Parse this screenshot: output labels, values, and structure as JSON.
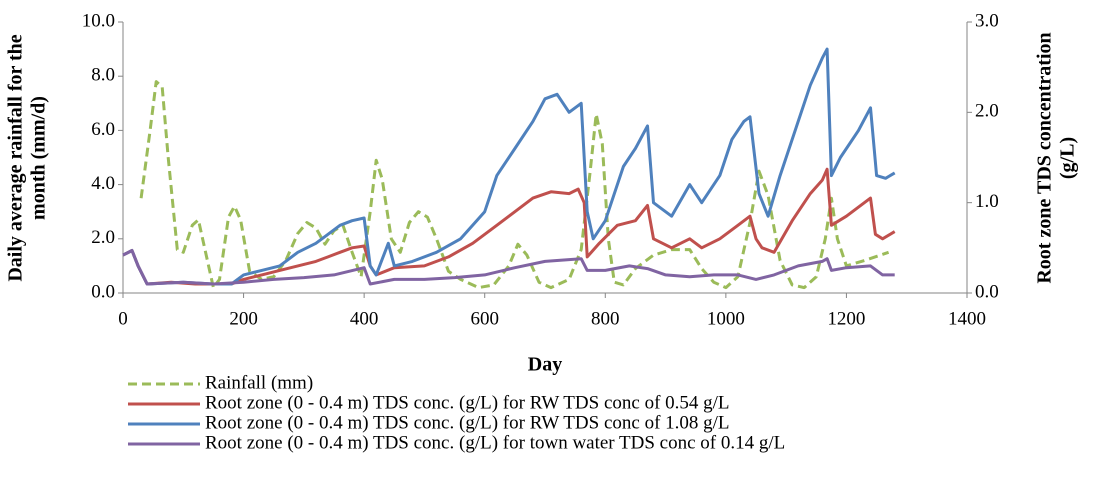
{
  "chart_data": {
    "type": "line",
    "xlabel": "Day",
    "ylabel": [
      "Daily average rainfall for the",
      "month (mm/d)"
    ],
    "y2label": [
      "Root zone TDS concentration",
      "(g/L)"
    ],
    "xlim": [
      0,
      1400
    ],
    "xticks": [
      0,
      200,
      400,
      600,
      800,
      1000,
      1200,
      1400
    ],
    "ylim": [
      0,
      10
    ],
    "yticks": [
      {
        "value": 0,
        "label": "0.0"
      },
      {
        "value": 2,
        "label": "2.0"
      },
      {
        "value": 4,
        "label": "4.0"
      },
      {
        "value": 6,
        "label": "6.0"
      },
      {
        "value": 8,
        "label": "8.0"
      },
      {
        "value": 10,
        "label": "10.0"
      }
    ],
    "y2lim": [
      0,
      3
    ],
    "y2ticks": [
      {
        "value": 0,
        "label": "0.0"
      },
      {
        "value": 1,
        "label": "1.0"
      },
      {
        "value": 2,
        "label": "2.0"
      },
      {
        "value": 3,
        "label": "3.0"
      }
    ],
    "series": [
      {
        "name": "Rainfall (mm)",
        "color": "#9bbb59",
        "dashed": true,
        "x": [
          30,
          45,
          55,
          65,
          75,
          90,
          100,
          115,
          125,
          140,
          150,
          160,
          175,
          185,
          195,
          210,
          230,
          250,
          270,
          290,
          305,
          320,
          335,
          350,
          365,
          380,
          395,
          410,
          420,
          430,
          445,
          460,
          475,
          490,
          505,
          520,
          540,
          560,
          590,
          615,
          640,
          655,
          670,
          690,
          710,
          740,
          760,
          775,
          785,
          795,
          805,
          815,
          830,
          850,
          880,
          910,
          940,
          960,
          980,
          1000,
          1020,
          1040,
          1055,
          1070,
          1090,
          1110,
          1130,
          1150,
          1165,
          1175,
          1185,
          1200,
          1230,
          1270
        ],
        "values": [
          3.5,
          6,
          7.8,
          7.6,
          5,
          1.6,
          1.5,
          2.5,
          2.7,
          1.2,
          0.2,
          0.5,
          2.8,
          3.2,
          2.7,
          0.8,
          0.5,
          0.6,
          1.2,
          2.2,
          2.6,
          2.4,
          1.8,
          2.3,
          2.5,
          1.5,
          0.6,
          3,
          4.9,
          4.2,
          2,
          1.5,
          2.6,
          3,
          2.8,
          2,
          0.8,
          0.5,
          0.2,
          0.3,
          1,
          1.8,
          1.4,
          0.4,
          0.2,
          0.5,
          1.6,
          4.5,
          6.6,
          5.5,
          2,
          0.4,
          0.3,
          0.9,
          1.4,
          1.6,
          1.6,
          0.9,
          0.4,
          0.2,
          0.6,
          2.6,
          4.5,
          3.6,
          1.2,
          0.3,
          0.2,
          0.6,
          2,
          3.5,
          2,
          1,
          1.2,
          1.5
        ]
      },
      {
        "name": "Root zone (0 - 0.4 m) TDS conc. (g/L) for RW TDS conc of 0.54 g/L",
        "color": "#c0504d",
        "axis": "y2",
        "x": [
          0,
          15,
          25,
          40,
          80,
          120,
          150,
          180,
          200,
          230,
          260,
          290,
          320,
          340,
          360,
          380,
          400,
          410,
          420,
          450,
          500,
          540,
          580,
          620,
          650,
          680,
          710,
          740,
          755,
          765,
          770,
          790,
          820,
          850,
          870,
          880,
          910,
          940,
          960,
          990,
          1020,
          1040,
          1050,
          1060,
          1080,
          1110,
          1140,
          1160,
          1168,
          1175,
          1200,
          1240,
          1248,
          1260,
          1280
        ],
        "values": [
          0.42,
          0.47,
          0.3,
          0.1,
          0.12,
          0.1,
          0.1,
          0.1,
          0.15,
          0.2,
          0.25,
          0.3,
          0.35,
          0.4,
          0.45,
          0.5,
          0.52,
          0.3,
          0.2,
          0.28,
          0.3,
          0.4,
          0.55,
          0.75,
          0.9,
          1.05,
          1.12,
          1.1,
          1.15,
          1.0,
          0.4,
          0.55,
          0.75,
          0.8,
          0.97,
          0.6,
          0.5,
          0.6,
          0.5,
          0.6,
          0.75,
          0.85,
          0.6,
          0.5,
          0.45,
          0.8,
          1.1,
          1.25,
          1.37,
          0.75,
          0.85,
          1.05,
          0.65,
          0.6,
          0.68
        ]
      },
      {
        "name": "Root zone (0 - 0.4 m) TDS conc. (g/L) for RW TDS conc of 1.08 g/L",
        "color": "#4f81bd",
        "axis": "y2",
        "x": [
          0,
          15,
          25,
          40,
          100,
          150,
          180,
          200,
          230,
          260,
          290,
          320,
          340,
          360,
          380,
          400,
          410,
          420,
          440,
          450,
          480,
          520,
          560,
          600,
          620,
          650,
          680,
          700,
          720,
          740,
          760,
          770,
          780,
          800,
          830,
          850,
          870,
          880,
          910,
          940,
          960,
          990,
          1010,
          1030,
          1040,
          1055,
          1070,
          1090,
          1120,
          1140,
          1160,
          1168,
          1175,
          1190,
          1220,
          1240,
          1250,
          1265,
          1280
        ],
        "values": [
          0.42,
          0.47,
          0.3,
          0.1,
          0.12,
          0.1,
          0.1,
          0.2,
          0.25,
          0.3,
          0.45,
          0.55,
          0.65,
          0.75,
          0.8,
          0.83,
          0.3,
          0.2,
          0.55,
          0.3,
          0.35,
          0.45,
          0.6,
          0.9,
          1.3,
          1.6,
          1.9,
          2.15,
          2.2,
          2.0,
          2.1,
          0.9,
          0.6,
          0.8,
          1.4,
          1.6,
          1.85,
          1.0,
          0.85,
          1.2,
          1.0,
          1.3,
          1.7,
          1.9,
          1.95,
          1.1,
          0.85,
          1.3,
          1.9,
          2.3,
          2.6,
          2.7,
          1.3,
          1.5,
          1.8,
          2.05,
          1.3,
          1.27,
          1.33
        ]
      },
      {
        "name": "Root zone (0 - 0.4 m) TDS conc. (g/L) for town water TDS conc of 0.14 g/L",
        "color": "#8064a2",
        "axis": "y2",
        "x": [
          0,
          15,
          25,
          40,
          100,
          150,
          200,
          250,
          300,
          350,
          400,
          410,
          450,
          500,
          550,
          600,
          650,
          700,
          760,
          770,
          800,
          840,
          870,
          900,
          940,
          980,
          1020,
          1050,
          1080,
          1120,
          1160,
          1168,
          1175,
          1200,
          1240,
          1260,
          1280
        ],
        "values": [
          0.42,
          0.47,
          0.3,
          0.1,
          0.12,
          0.1,
          0.12,
          0.15,
          0.17,
          0.2,
          0.28,
          0.1,
          0.15,
          0.15,
          0.17,
          0.2,
          0.28,
          0.35,
          0.38,
          0.25,
          0.25,
          0.3,
          0.27,
          0.2,
          0.18,
          0.2,
          0.2,
          0.15,
          0.2,
          0.3,
          0.35,
          0.38,
          0.25,
          0.28,
          0.3,
          0.2,
          0.2
        ]
      }
    ]
  }
}
